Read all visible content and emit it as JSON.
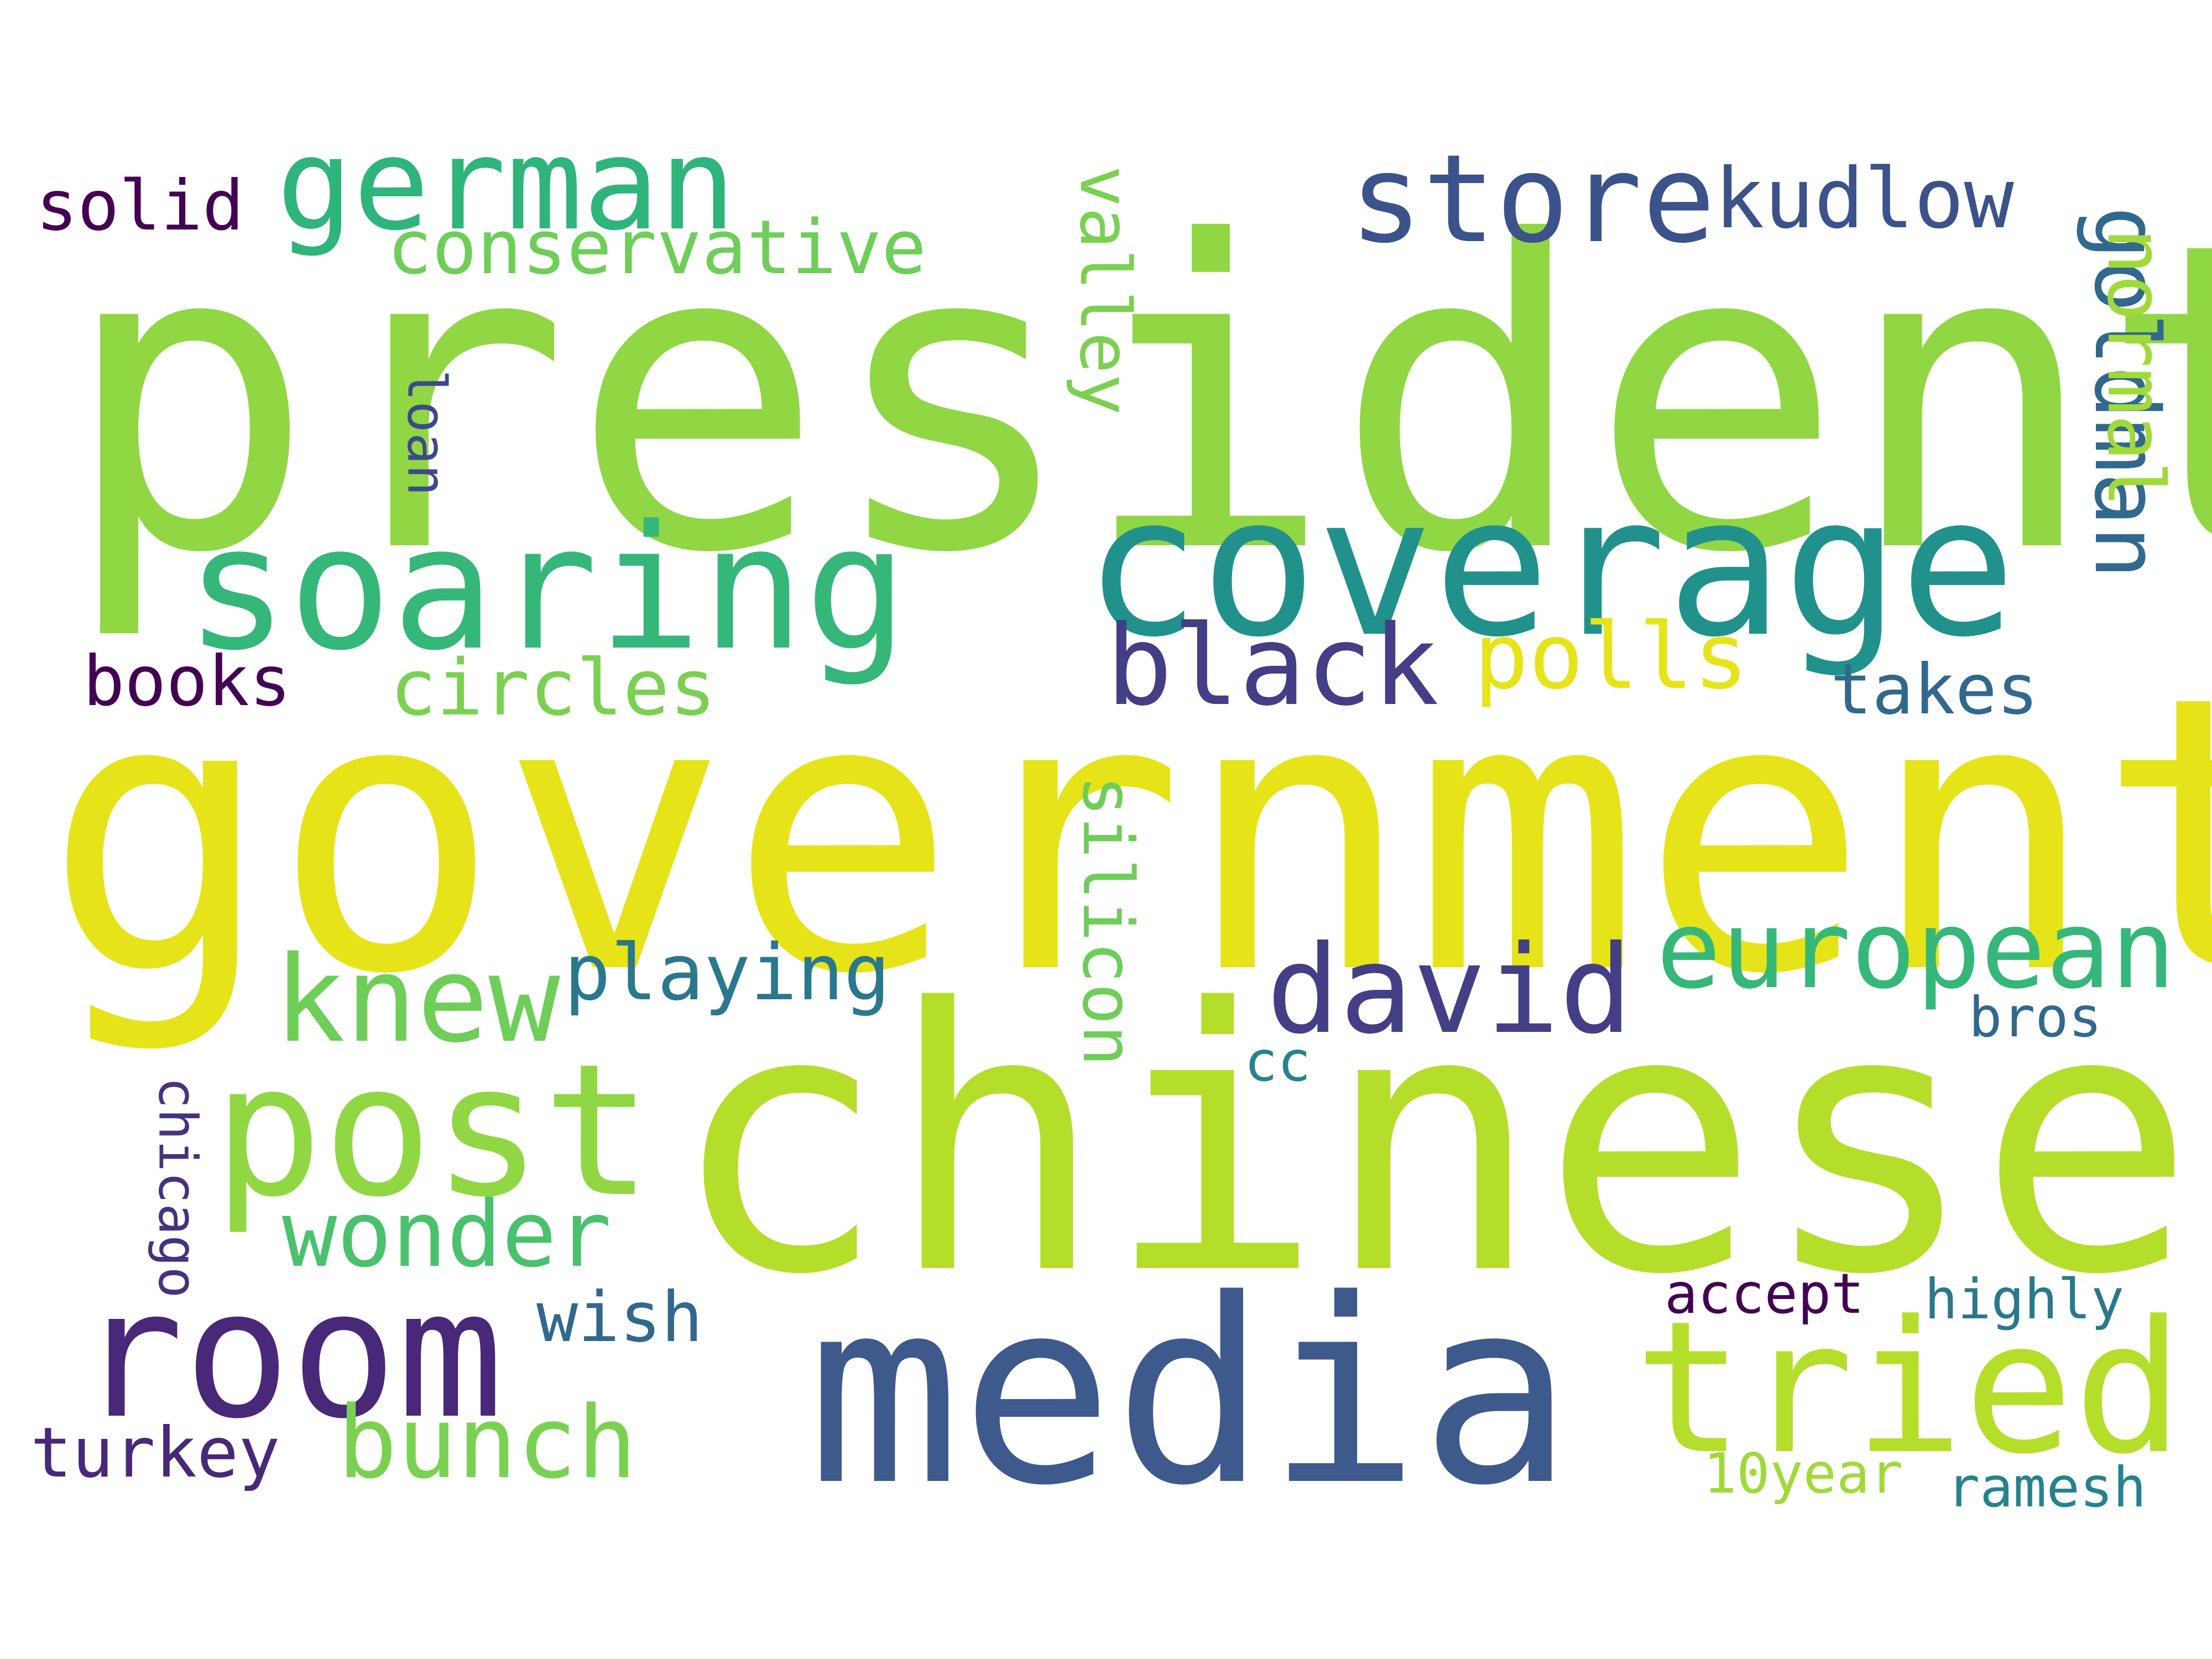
{
  "palette": {
    "background": "#ffffff",
    "colors": [
      "#440154",
      "#482878",
      "#3e4989",
      "#31688e",
      "#26828e",
      "#1f9e89",
      "#35b779",
      "#6ece58",
      "#90d743",
      "#b5de2b",
      "#e6e419"
    ]
  },
  "words": [
    {
      "text": "president",
      "color": "#90d743",
      "orientation": "horizontal"
    },
    {
      "text": "government",
      "color": "#e6e419",
      "orientation": "horizontal"
    },
    {
      "text": "chinese",
      "color": "#b5de2b",
      "orientation": "horizontal"
    },
    {
      "text": "media",
      "color": "#3e5a8c",
      "orientation": "horizontal"
    },
    {
      "text": "coverage",
      "color": "#21918c",
      "orientation": "horizontal"
    },
    {
      "text": "soaring",
      "color": "#35b779",
      "orientation": "horizontal"
    },
    {
      "text": "post",
      "color": "#90d743",
      "orientation": "horizontal"
    },
    {
      "text": "room",
      "color": "#482878",
      "orientation": "horizontal"
    },
    {
      "text": "tried",
      "color": "#b5de2b",
      "orientation": "horizontal"
    },
    {
      "text": "german",
      "color": "#2fb47c",
      "orientation": "horizontal"
    },
    {
      "text": "store",
      "color": "#3b528b",
      "orientation": "horizontal"
    },
    {
      "text": "kudlow",
      "color": "#3b528b",
      "orientation": "horizontal"
    },
    {
      "text": "black",
      "color": "#433e85",
      "orientation": "horizontal"
    },
    {
      "text": "polls",
      "color": "#e6e419",
      "orientation": "horizontal"
    },
    {
      "text": "european",
      "color": "#35b779",
      "orientation": "horizontal"
    },
    {
      "text": "david",
      "color": "#433e85",
      "orientation": "horizontal"
    },
    {
      "text": "knew",
      "color": "#6ece58",
      "orientation": "horizontal"
    },
    {
      "text": "wonder",
      "color": "#4ac16d",
      "orientation": "horizontal"
    },
    {
      "text": "bunch",
      "color": "#7ad151",
      "orientation": "horizontal"
    },
    {
      "text": "conservative",
      "color": "#6ece58",
      "orientation": "horizontal"
    },
    {
      "text": "circles",
      "color": "#7ad151",
      "orientation": "horizontal"
    },
    {
      "text": "playing",
      "color": "#2a788e",
      "orientation": "horizontal"
    },
    {
      "text": "takes",
      "color": "#31688e",
      "orientation": "horizontal"
    },
    {
      "text": "solid",
      "color": "#440154",
      "orientation": "horizontal"
    },
    {
      "text": "books",
      "color": "#440154",
      "orientation": "horizontal"
    },
    {
      "text": "wish",
      "color": "#31688e",
      "orientation": "horizontal"
    },
    {
      "text": "turkey",
      "color": "#482878",
      "orientation": "horizontal"
    },
    {
      "text": "accept",
      "color": "#440154",
      "orientation": "horizontal"
    },
    {
      "text": "highly",
      "color": "#2a788e",
      "orientation": "horizontal"
    },
    {
      "text": "ramesh",
      "color": "#26828e",
      "orientation": "horizontal"
    },
    {
      "text": "10year",
      "color": "#a0da39",
      "orientation": "horizontal"
    },
    {
      "text": "bros",
      "color": "#31688e",
      "orientation": "horizontal"
    },
    {
      "text": "cc",
      "color": "#26828e",
      "orientation": "horizontal"
    },
    {
      "text": "goldman",
      "color": "#31688e",
      "orientation": "vertical"
    },
    {
      "text": "normal",
      "color": "#a0da39",
      "orientation": "vertical"
    },
    {
      "text": "valley",
      "color": "#7ad151",
      "orientation": "vertical"
    },
    {
      "text": "silicon",
      "color": "#6ece58",
      "orientation": "vertical"
    },
    {
      "text": "loan",
      "color": "#3e4989",
      "orientation": "vertical"
    },
    {
      "text": "chicago",
      "color": "#46327e",
      "orientation": "vertical"
    }
  ]
}
